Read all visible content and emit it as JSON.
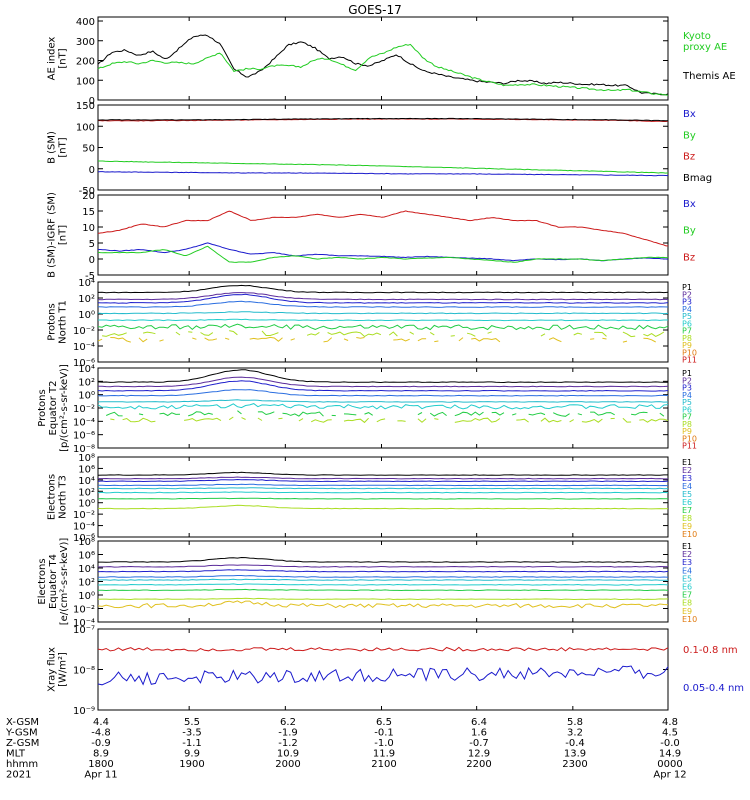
{
  "title": "GOES-17",
  "colors": {
    "black": "#000000",
    "green": "#22cc22",
    "blue": "#1a1acc",
    "red": "#cc1a1a",
    "p": [
      "#000000",
      "#5a2a9a",
      "#2020cc",
      "#2a6ee0",
      "#22bbcc",
      "#22cccc",
      "#22cc44",
      "#aadd22",
      "#e0c020",
      "#e07a10",
      "#cc1a1a"
    ]
  },
  "chart_data": [
    {
      "type": "line",
      "id": "ae",
      "ylabel": "AE index\n[nT]",
      "yticks": [
        "400",
        "300",
        "200",
        "100",
        "0"
      ],
      "ylim": [
        0,
        400
      ],
      "legend": [
        {
          "text": "Kyoto\nproxy AE",
          "color": "#22cc22"
        },
        {
          "text": "Themis AE",
          "color": "#000000"
        }
      ],
      "series": [
        {
          "name": "Themis AE",
          "color": "#000000",
          "values": [
            170,
            230,
            240,
            215,
            235,
            195,
            250,
            305,
            315,
            270,
            150,
            110,
            140,
            200,
            265,
            280,
            250,
            200,
            210,
            175,
            165,
            190,
            220,
            175,
            140,
            125,
            110,
            100,
            90,
            85,
            80,
            95,
            90,
            80,
            85,
            80,
            75,
            75,
            70,
            70,
            35,
            30,
            28
          ]
        },
        {
          "name": "Kyoto proxy AE",
          "color": "#22cc22",
          "values": [
            150,
            175,
            185,
            175,
            190,
            180,
            180,
            175,
            200,
            230,
            140,
            150,
            150,
            165,
            165,
            160,
            195,
            200,
            170,
            145,
            205,
            225,
            255,
            270,
            200,
            160,
            140,
            120,
            100,
            85,
            70,
            75,
            75,
            70,
            65,
            60,
            55,
            50,
            45,
            50,
            40,
            30,
            25
          ]
        }
      ]
    },
    {
      "type": "line",
      "id": "bsm",
      "ylabel": "B (SM)\n[nT]",
      "yticks": [
        "150",
        "100",
        "50",
        "0",
        "-50"
      ],
      "ylim": [
        -50,
        150
      ],
      "legend": [
        {
          "text": "Bx",
          "color": "#1a1acc"
        },
        {
          "text": "By",
          "color": "#22cc22"
        },
        {
          "text": "Bz",
          "color": "#cc1a1a"
        },
        {
          "text": "Bmag",
          "color": "#000000"
        }
      ],
      "series": [
        {
          "name": "Bx",
          "color": "#1a1acc",
          "values": [
            -7,
            -8,
            -9,
            -10,
            -10,
            -11,
            -12,
            -12,
            -13,
            -14,
            -15,
            -16
          ]
        },
        {
          "name": "By",
          "color": "#22cc22",
          "values": [
            18,
            16,
            14,
            12,
            10,
            8,
            5,
            2,
            -1,
            -4,
            -7,
            -10
          ]
        },
        {
          "name": "Bz",
          "color": "#cc1a1a",
          "values": [
            113,
            113,
            114,
            115,
            116,
            117,
            117,
            117,
            116,
            115,
            114,
            111
          ]
        },
        {
          "name": "Bmag",
          "color": "#000000",
          "values": [
            115,
            115,
            115,
            116,
            117,
            118,
            118,
            118,
            117,
            116,
            115,
            113
          ]
        }
      ]
    },
    {
      "type": "line",
      "id": "bigrf",
      "ylabel": "B (SM)-IGRF (SM)\n[nT]",
      "yticks": [
        "20",
        "15",
        "10",
        "5",
        "0",
        "-5"
      ],
      "ylim": [
        -5,
        20
      ],
      "legend": [
        {
          "text": "Bx",
          "color": "#1a1acc"
        },
        {
          "text": "By",
          "color": "#22cc22"
        },
        {
          "text": "Bz",
          "color": "#cc1a1a"
        }
      ],
      "series": [
        {
          "name": "Bx",
          "color": "#1a1acc",
          "values": [
            3,
            2.5,
            3,
            2,
            3,
            5,
            3,
            1.5,
            2,
            1,
            1.5,
            1,
            1,
            0.8,
            0.5,
            0.8,
            0.5,
            0.3,
            0,
            -0.5,
            0,
            -0.2,
            0,
            -0.5,
            0,
            0.3,
            0
          ]
        },
        {
          "name": "By",
          "color": "#22cc22",
          "values": [
            2,
            2,
            2,
            3,
            1,
            4,
            -1,
            -1,
            0.5,
            1,
            0,
            0.5,
            0,
            0.5,
            0,
            0.3,
            0.5,
            0,
            -0.5,
            -1,
            0,
            0,
            0,
            -0.5,
            0,
            0.5,
            0.5
          ]
        },
        {
          "name": "Bz",
          "color": "#cc1a1a",
          "values": [
            8,
            9,
            11,
            10,
            12,
            12,
            15,
            12,
            13,
            13,
            14,
            13,
            14,
            13,
            15,
            14,
            13,
            12,
            13,
            12,
            12,
            10,
            10,
            9,
            8,
            6,
            4
          ]
        }
      ]
    },
    {
      "type": "line",
      "id": "pn",
      "log": true,
      "ylabel": "Protons\nNorth T1",
      "yticks": [
        "10⁴",
        "10²",
        "10⁰",
        "10⁻²",
        "10⁻⁴",
        "10⁻⁶"
      ],
      "ylim": [
        -7,
        4.5
      ],
      "legend_labels": [
        "P1",
        "P2",
        "P3",
        "P4",
        "P5",
        "P6",
        "P7",
        "P8",
        "P9",
        "P10",
        "P11"
      ],
      "levels": [
        3.0,
        2.0,
        1.5,
        0.9,
        0.0,
        -1.0,
        -2.0,
        -3.0,
        -3.8,
        null,
        null
      ],
      "bumps": [
        1.0,
        1.0,
        1.2,
        0.8,
        0.2,
        0.1,
        0.1,
        0.2,
        0.3,
        0,
        0
      ]
    },
    {
      "type": "line",
      "id": "pe",
      "log": true,
      "ylabel": "Protons\nEquator T2\n[p/(cm²-s-sr-keV)]",
      "yticks": [
        "10⁴",
        "10²",
        "10⁰",
        "10⁻²",
        "10⁻⁴",
        "10⁻⁶",
        "10⁻⁸"
      ],
      "ylim": [
        -8.5,
        4.5
      ],
      "legend_labels": [
        "P1",
        "P2",
        "P3",
        "P4",
        "P5",
        "P6",
        "P7",
        "P8",
        "P9",
        "P10",
        "P11"
      ],
      "levels": [
        2.2,
        1.5,
        0.8,
        0.0,
        -1.0,
        -1.8,
        -3.0,
        -4.0,
        null,
        null,
        null
      ],
      "bumps": [
        2.0,
        1.5,
        1.6,
        1.0,
        0.3,
        0.2,
        0.3,
        0.3,
        0,
        0,
        0
      ]
    },
    {
      "type": "line",
      "id": "en",
      "log": true,
      "ylabel": "Electrons\nNorth T3",
      "yticks": [
        "10⁸",
        "10⁶",
        "10⁴",
        "10²",
        "10⁰",
        "10⁻²",
        "10⁻⁴",
        "10⁻⁶"
      ],
      "ylim": [
        -7,
        8.5
      ],
      "legend_labels": [
        "E1",
        "E2",
        "E3",
        "E4",
        "E5",
        "E6",
        "E7",
        "E8",
        "E9",
        "E10"
      ],
      "levels": [
        5.0,
        4.3,
        3.8,
        3.0,
        2.4,
        1.6,
        0.4,
        -1.5,
        null,
        null
      ],
      "bumps": [
        0.5,
        0.3,
        0.3,
        0.2,
        0.1,
        0.1,
        0.1,
        0.6,
        0,
        0
      ]
    },
    {
      "type": "line",
      "id": "ee",
      "log": true,
      "ylabel": "Electrons\nEquator T4\n[e/(cm²-s-sr-keV)]",
      "yticks": [
        "10⁸",
        "10⁶",
        "10⁴",
        "10²",
        "10⁰",
        "10⁻²",
        "10⁻⁴"
      ],
      "ylim": [
        -5,
        8.5
      ],
      "legend_labels": [
        "E1",
        "E2",
        "E3",
        "E4",
        "E5",
        "E6",
        "E7",
        "E8",
        "E9",
        "E10"
      ],
      "levels": [
        5.0,
        4.2,
        3.4,
        2.5,
        2.0,
        1.2,
        0.3,
        -1.2,
        -2.3,
        null
      ],
      "bumps": [
        0.7,
        0.3,
        0.3,
        0.2,
        0.1,
        0.1,
        0.1,
        0.1,
        0.5,
        0
      ]
    },
    {
      "type": "line",
      "id": "xray",
      "log": true,
      "ylabel": "Xray flux\n[W/m²]",
      "yticks": [
        "10⁻⁷",
        "10⁻⁸",
        "10⁻⁹"
      ],
      "ylim": [
        -9.2,
        -7.0
      ],
      "legend": [
        {
          "text": "0.1-0.8 nm",
          "color": "#cc1a1a"
        },
        {
          "text": "0.05-0.4 nm",
          "color": "#1a1acc"
        }
      ],
      "levels": [
        -7.55,
        -8.35
      ]
    }
  ],
  "xaxis": {
    "row_labels": [
      "X-GSM",
      "Y-GSM",
      "Z-GSM",
      "MLT",
      "hhmm",
      "2021"
    ],
    "columns": [
      [
        "4.4",
        "-4.8",
        "-0.9",
        "8.9",
        "1800",
        "Apr 11"
      ],
      [
        "5.5",
        "-3.5",
        "-1.1",
        "9.9",
        "1900",
        ""
      ],
      [
        "6.2",
        "-1.9",
        "-1.2",
        "10.9",
        "2000",
        ""
      ],
      [
        "6.5",
        "-0.1",
        "-1.0",
        "11.9",
        "2100",
        ""
      ],
      [
        "6.4",
        "1.6",
        "-0.7",
        "12.9",
        "2200",
        ""
      ],
      [
        "5.8",
        "3.2",
        "-0.4",
        "13.9",
        "2300",
        ""
      ],
      [
        "4.8",
        "4.5",
        "-0.0",
        "14.9",
        "0000",
        "Apr 12"
      ]
    ]
  }
}
